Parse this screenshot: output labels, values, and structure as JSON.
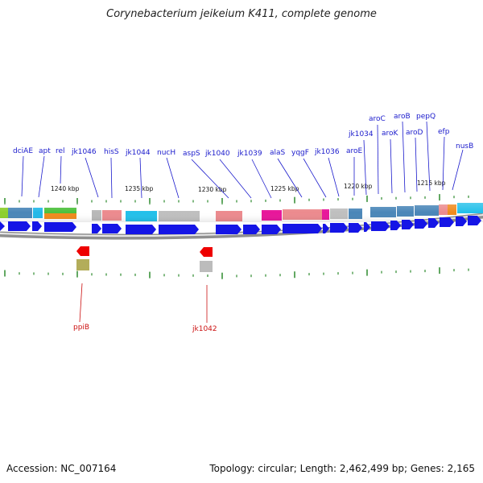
{
  "title": "Corynebacterium jeikeium K411, complete genome",
  "accession": "Accession: NC_007164",
  "summary": "Topology: circular; Length: 2,462,499 bp; Genes: 2,165",
  "colors": {
    "gene_label": "#1a1acc",
    "reverse_label": "#cc1111",
    "forward_arrow": "#1515e6",
    "reverse_arrow": "#ee0000",
    "backbone": "#8f8f8f",
    "tick": "#2d8a2d"
  },
  "kbp_labels": [
    "1240 kbp",
    "1235 kbp",
    "1230 kbp",
    "1225 kbp",
    "1220 kbp",
    "1215 kbp"
  ],
  "forward_genes": [
    "dciAE",
    "apt",
    "rel",
    "jk1046",
    "hisS",
    "jk1044",
    "nucH",
    "aspS",
    "jk1040",
    "jk1039",
    "alaS",
    "yqgF",
    "jk1036",
    "aroE",
    "jk1034",
    "aroC",
    "aroK",
    "aroB",
    "aroD",
    "pepQ",
    "efp",
    "nusB"
  ],
  "reverse_genes": [
    "ppiB",
    "jk1042"
  ]
}
